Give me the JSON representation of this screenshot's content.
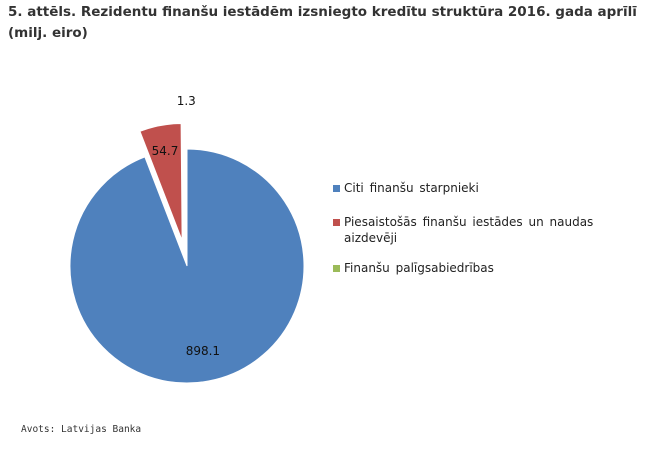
{
  "title": "5. attēls. Rezidentu finanšu iestādēm izsniegto kredītu struktūra 2016. gada aprīlī (milj. eiro)",
  "source": "Avots: Latvijas Banka",
  "chart_data": {
    "type": "pie",
    "title": "5. attēls. Rezidentu finanšu iestādēm izsniegto kredītu struktūra 2016. gada aprīlī (milj. eiro)",
    "slices": [
      {
        "label": "Citi finanšu starpnieki",
        "value": 898.1,
        "data_label": "898.1",
        "color": "#4f81bd"
      },
      {
        "label": "Piesaistošās finanšu iestādes un naudas aizdevēji",
        "value": 54.7,
        "data_label": "54.7",
        "color": "#c0504d"
      },
      {
        "label": "Finanšu palīgsabiedrības",
        "value": 1.3,
        "data_label": "1.3",
        "color": "#9bbb59"
      }
    ],
    "legend_position": "right",
    "exploded": true
  }
}
